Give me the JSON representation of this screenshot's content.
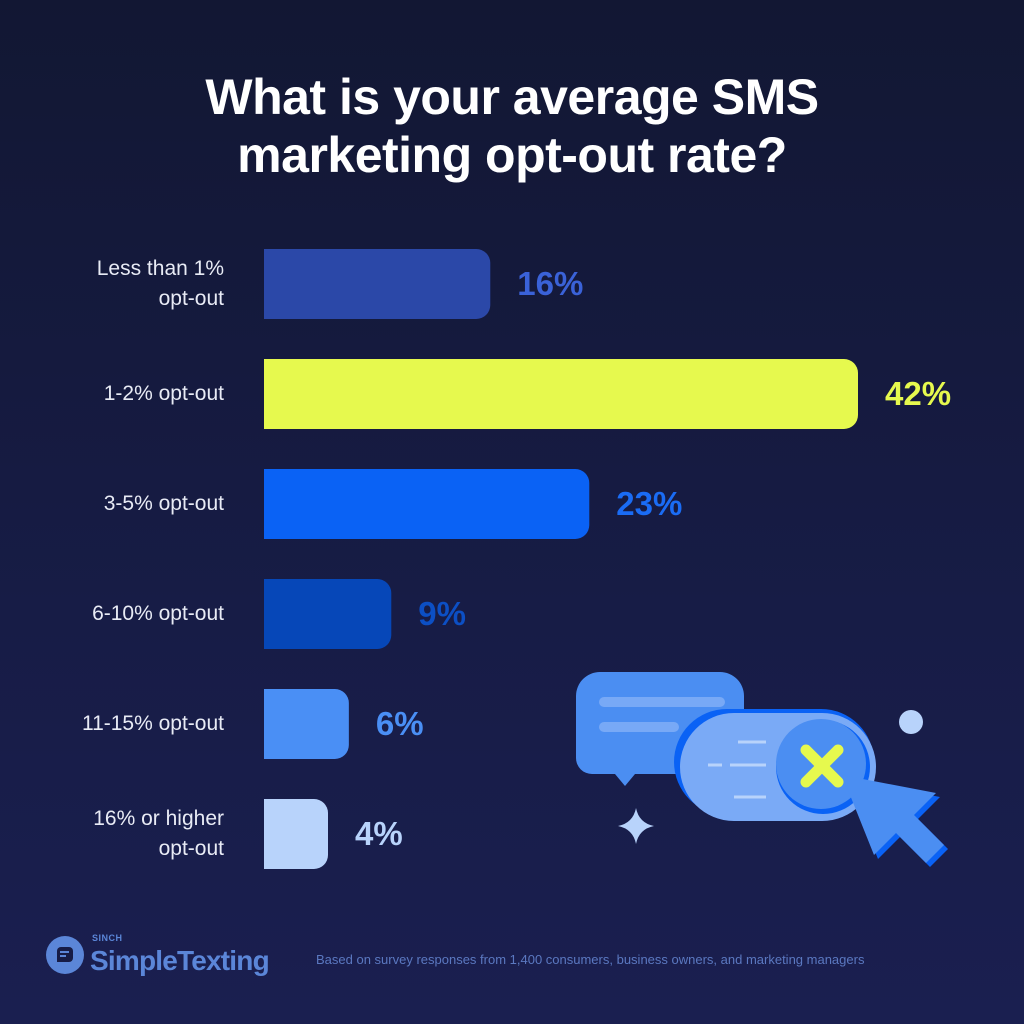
{
  "title_lines": [
    "What is your average SMS",
    "marketing opt-out rate?"
  ],
  "chart_data": {
    "type": "bar",
    "orientation": "horizontal",
    "title": "What is your average SMS marketing opt-out rate?",
    "categories": [
      "Less than 1% opt-out",
      "1-2% opt-out",
      "3-5% opt-out",
      "6-10% opt-out",
      "11-15% opt-out",
      "16% or higher opt-out"
    ],
    "category_lines": [
      [
        "Less than 1%",
        "opt-out"
      ],
      [
        "1-2% opt-out"
      ],
      [
        "3-5% opt-out"
      ],
      [
        "6-10% opt-out"
      ],
      [
        "11-15% opt-out"
      ],
      [
        "16% or higher",
        "opt-out"
      ]
    ],
    "values": [
      16,
      42,
      23,
      9,
      6,
      4
    ],
    "value_labels": [
      "16%",
      "42%",
      "23%",
      "9%",
      "6%",
      "4%"
    ],
    "unit": "%",
    "colors": [
      "#2b48a8",
      "#e6f94e",
      "#0a62f5",
      "#0647b8",
      "#4a8ff5",
      "#b8d3fb"
    ],
    "label_colors": [
      "#3a62d8",
      "#e6f94e",
      "#1a6cf5",
      "#0c4fc4",
      "#4a8ff5",
      "#b8d3fb"
    ],
    "grid": false,
    "legend": "none"
  },
  "footer": {
    "brand_small": "SINCH",
    "brand": "SimpleTexting",
    "note": "Based on survey responses from 1,400 consumers, business owners, and marketing managers"
  },
  "illustration": {
    "icons": [
      "chat-bubble-icon",
      "toggle-close-icon",
      "cursor-arrow-icon",
      "sparkle-icon",
      "dot-icon"
    ]
  }
}
